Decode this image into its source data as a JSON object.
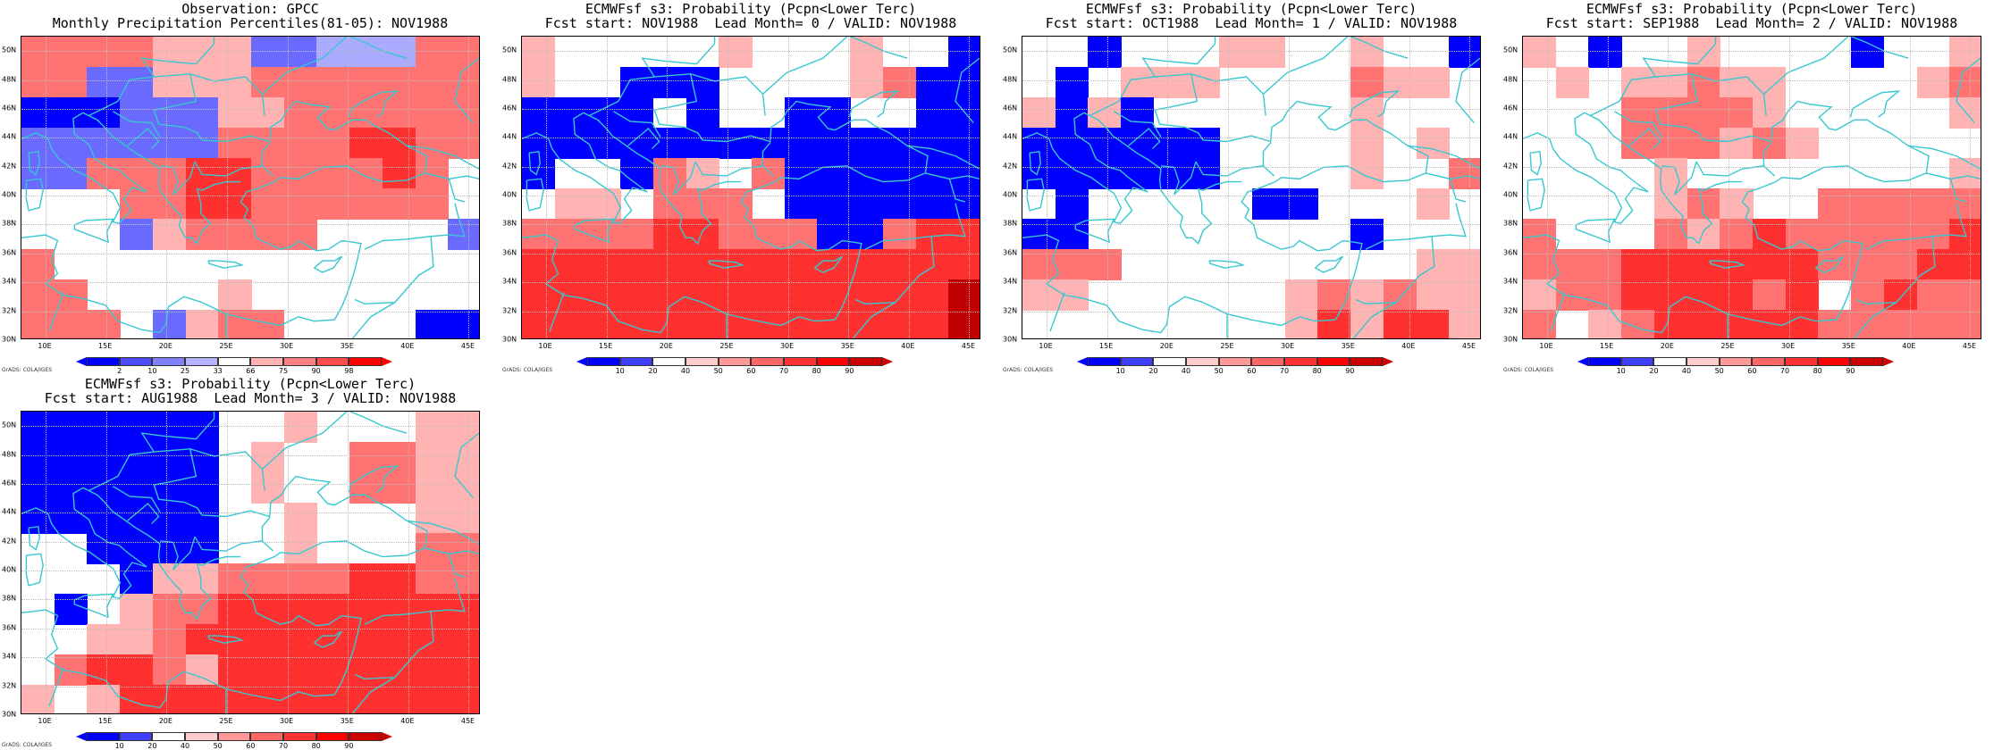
{
  "map_region": {
    "lon_range": [
      8,
      46
    ],
    "lat_range": [
      30,
      51
    ],
    "cell_size_deg": 2.5,
    "lat_ticks": [
      "30N",
      "32N",
      "34N",
      "36N",
      "38N",
      "40N",
      "42N",
      "44N",
      "46N",
      "48N",
      "50N"
    ],
    "lon_ticks": [
      "10E",
      "15E",
      "20E",
      "25E",
      "30E",
      "35E",
      "40E",
      "45E"
    ],
    "credit": "GrADS: COLA/IGES",
    "coast_color": "#35c8cf"
  },
  "panels": [
    {
      "id": "obs",
      "title_line1": "Observation: GPCC",
      "title_line2": "Monthly Precipitation Percentiles(81-05): NOV1988",
      "colorbar": {
        "labels": [
          "2",
          "10",
          "25",
          "33",
          "66",
          "75",
          "90",
          "98"
        ],
        "colors": [
          "#0000ff",
          "#4d4dff",
          "#8080ff",
          "#b3b3ff",
          "#ffffff",
          "#ffb3b3",
          "#ff8080",
          "#ff4d4d",
          "#ff0000"
        ]
      },
      "cells_rows_north_to_south": [
        "rrrrpppbblllrr",
        "rrbbppprrrrrrr",
        "BBBbbbpprrrrrr",
        "bbbbbbrrrrRRrr",
        "bbrrrRRrrrrRrw",
        "wwwrrRRrrrrrrw",
        "wwwbprrrrwwwwb",
        "rwwwwwwwwwwwww",
        "rrwwwwpwwwwwww",
        "rrrwbprrwwwwBB"
      ]
    },
    {
      "id": "lead0",
      "title_line1": "ECMWFsf s3: Probability (Pcpn<Lower Terc)",
      "title_line2": "Fcst start: NOV1988  Lead Month= 0 / VALID: NOV1988",
      "colorbar": {
        "labels": [
          "10",
          "20",
          "40",
          "50",
          "60",
          "70",
          "80",
          "90"
        ],
        "colors": [
          "#0000ff",
          "#4040ff",
          "#ffffff",
          "#ffcccc",
          "#ff9999",
          "#ff6666",
          "#ff3333",
          "#ff0000",
          "#cc0000"
        ]
      },
      "cells_rows_north_to_south": [
        "pwwwwwpwwwpwwB",
        "pwwBBBwwwwprBB",
        "BBBBwBwwBBwwBB",
        "BBBBBBBBBBBBBB",
        "BwwBrpwrBBBBBB",
        "wppwrrrwBBBBBB",
        "rrrrRRrrrBBrRR",
        "RRRRRRRRRRRRRR",
        "RRRRRRRRRRRRRD",
        "RRRRRRRRRRRRRD"
      ]
    },
    {
      "id": "lead1",
      "title_line1": "ECMWFsf s3: Probability (Pcpn<Lower Terc)",
      "title_line2": "Fcst start: OCT1988  Lead Month= 1 / VALID: NOV1988",
      "colorbar": {
        "labels": [
          "10",
          "20",
          "40",
          "50",
          "60",
          "70",
          "80",
          "90"
        ],
        "colors": [
          "#0000ff",
          "#4040ff",
          "#ffffff",
          "#ffcccc",
          "#ff9999",
          "#ff6666",
          "#ff3333",
          "#ff0000",
          "#cc0000"
        ]
      },
      "cells_rows_north_to_south": [
        "wwBwwwppwwpwwB",
        "wBwpppwwwwrppw",
        "pBpBwwwwwwpwww",
        "BBBBBBwwwwpwpw",
        "BBBBBBwwwwpwwr",
        "wBwwwwwBBwwwpw",
        "BBwwwwwwwwBwww",
        "rrrwwwwwwwwwpp",
        "ppwwwwwwprprpp",
        "wwwwwwwwpRpRRp"
      ]
    },
    {
      "id": "lead2",
      "title_line1": "ECMWFsf s3: Probability (Pcpn<Lower Terc)",
      "title_line2": "Fcst start: SEP1988  Lead Month= 2 / VALID: NOV1988",
      "colorbar": {
        "labels": [
          "10",
          "20",
          "40",
          "50",
          "60",
          "70",
          "80",
          "90"
        ],
        "colors": [
          "#0000ff",
          "#4040ff",
          "#ffffff",
          "#ffcccc",
          "#ff9999",
          "#ff6666",
          "#ff3333",
          "#ff0000",
          "#cc0000"
        ]
      },
      "cells_rows_north_to_south": [
        "pwBwwpwwwwBwwp",
        "wpwpprppwwwwpr",
        "wwwrrrrpwwwwwp",
        "wwwrrrprpwwwww",
        "wwwwpwwwwwwwwp",
        "wwwwprpwwrrrrr",
        "rwwwrprRrrrrrR",
        "rrrRRRRRRrrrRR",
        "prrRRRRrRwrRrr",
        "rwprRRRRRrrrrr"
      ]
    },
    {
      "id": "lead3",
      "title_line1": "ECMWFsf s3: Probability (Pcpn<Lower Terc)",
      "title_line2": "Fcst start: AUG1988  Lead Month= 3 / VALID: NOV1988",
      "colorbar": {
        "labels": [
          "10",
          "20",
          "40",
          "50",
          "60",
          "70",
          "80",
          "90"
        ],
        "colors": [
          "#0000ff",
          "#4040ff",
          "#ffffff",
          "#ffcccc",
          "#ff9999",
          "#ff6666",
          "#ff3333",
          "#ff0000",
          "#cc0000"
        ]
      },
      "cells_rows_north_to_south": [
        "BBBBBBwwpwwwpp",
        "BBBBBBwpwwrrpp",
        "BBBBBBwpwwrrpp",
        "BBBBBBwwpwwwpp",
        "wwBBBBwwpwwwrr",
        "wwwBpprrrrRRrr",
        "wBwprrRRRRRRRR",
        "wwpprRRRRRRRRR",
        "wrRRrpRRRRRRRR",
        "pwpRRRRRRRRRRR"
      ]
    }
  ],
  "color_keys": {
    "B": "#0000ff",
    "b": "#6a6aff",
    "l": "#aaaaff",
    "w": "#ffffff",
    "p": "#ffb3b3",
    "r": "#ff7373",
    "R": "#ff3030",
    "D": "#c00000"
  }
}
